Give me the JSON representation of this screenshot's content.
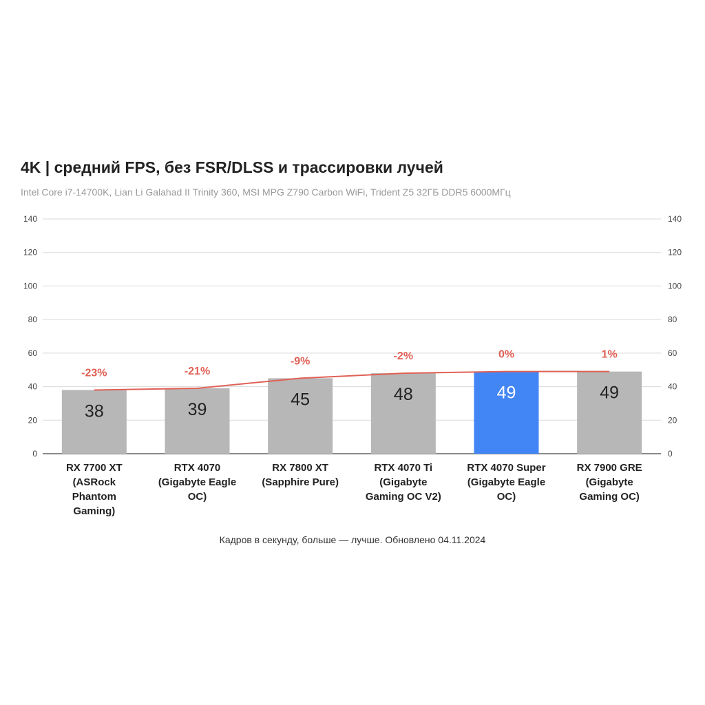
{
  "chart_data": {
    "type": "bar",
    "title": "4K | средний FPS, без FSR/DLSS и трассировки лучей",
    "subtitle": "Intel Core i7-14700K, Lian Li Galahad II Trinity 360, MSI MPG Z790 Carbon WiFi, Trident Z5 32ГБ DDR5 6000МГц",
    "footnote": "Кадров в секунду, больше — лучше. Обновлено 04.11.2024",
    "categories": [
      [
        "RX 7700 XT",
        "(ASRock",
        "Phantom",
        "Gaming)"
      ],
      [
        "RTX 4070",
        "(Gigabyte Eagle",
        "OC)"
      ],
      [
        "RX 7800 XT",
        "(Sapphire Pure)"
      ],
      [
        "RTX 4070 Ti",
        "(Gigabyte",
        "Gaming OC V2)"
      ],
      [
        "RTX 4070 Super",
        "(Gigabyte Eagle",
        "OC)"
      ],
      [
        "RX 7900 GRE",
        "(Gigabyte",
        "Gaming OC)"
      ]
    ],
    "series": [
      {
        "type": "bar",
        "values": [
          38,
          39,
          45,
          48,
          49,
          49
        ],
        "labels": [
          "38",
          "39",
          "45",
          "48",
          "49",
          "49"
        ],
        "highlight_index": 4
      },
      {
        "type": "line",
        "values": [
          38,
          39,
          45,
          48,
          49,
          49
        ],
        "labels": [
          "-23%",
          "-21%",
          "-9%",
          "-2%",
          "0%",
          "1%"
        ]
      }
    ],
    "ylim": [
      0,
      140
    ],
    "yticks": [
      0,
      20,
      40,
      60,
      80,
      100,
      120,
      140
    ],
    "y_axes": [
      "left",
      "right"
    ],
    "grid": true,
    "colors": {
      "bar": "#b7b7b7",
      "highlight": "#4285f4",
      "line": "#e06055",
      "line_label": "#e06055",
      "grid": "#d9d9d9",
      "axis": "#444444",
      "tick_text": "#444444",
      "bar_label": "#222222",
      "highlight_label": "#ffffff"
    }
  }
}
